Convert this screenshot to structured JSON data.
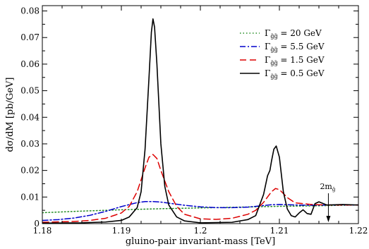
{
  "chart_data": {
    "type": "line",
    "xlabel": "gluino-pair invariant-mass [TeV]",
    "ylabel": "dσ/dM [pb/GeV]",
    "xlim": [
      1.18,
      1.22
    ],
    "ylim": [
      0,
      0.082
    ],
    "x_ticks": [
      "1.18",
      "1.19",
      "1.2",
      "1.21",
      "1.22"
    ],
    "y_ticks": [
      "0",
      "0.01",
      "0.02",
      "0.03",
      "0.04",
      "0.05",
      "0.06",
      "0.07",
      "0.08"
    ],
    "legend_position": "top-right",
    "annotation": {
      "text": "2m",
      "sub": "g̃",
      "x": 1.2162
    },
    "series": [
      {
        "name_main": "Γ",
        "name_sub": "g̃g̃",
        "name_rest": " = 20  GeV",
        "color": "#228B22",
        "dash": "1.5,3",
        "x": [
          1.18,
          1.185,
          1.19,
          1.195,
          1.2,
          1.205,
          1.21,
          1.215,
          1.22
        ],
        "y": [
          0.0041,
          0.0047,
          0.0052,
          0.0056,
          0.0059,
          0.0062,
          0.0065,
          0.0067,
          0.007
        ]
      },
      {
        "name_main": "Γ",
        "name_sub": "g̃g̃",
        "name_rest": " = 5.5 GeV",
        "color": "#0000CC",
        "dash": "8,3,2,3",
        "x": [
          1.18,
          1.182,
          1.184,
          1.186,
          1.188,
          1.19,
          1.192,
          1.193,
          1.194,
          1.195,
          1.196,
          1.198,
          1.2,
          1.202,
          1.204,
          1.206,
          1.208,
          1.209,
          1.21,
          1.212,
          1.214,
          1.216,
          1.218,
          1.22
        ],
        "y": [
          0.0012,
          0.0015,
          0.0021,
          0.0031,
          0.0046,
          0.0064,
          0.0079,
          0.0083,
          0.0083,
          0.0081,
          0.0077,
          0.0069,
          0.0063,
          0.006,
          0.006,
          0.0062,
          0.0068,
          0.0071,
          0.0072,
          0.007,
          0.0069,
          0.007,
          0.007,
          0.007
        ]
      },
      {
        "name_main": "Γ",
        "name_sub": "g̃g̃",
        "name_rest": " = 1.5 GeV",
        "color": "#DD0000",
        "dash": "9,5",
        "x": [
          1.18,
          1.184,
          1.186,
          1.188,
          1.19,
          1.191,
          1.192,
          1.193,
          1.1935,
          1.194,
          1.1945,
          1.195,
          1.196,
          1.197,
          1.198,
          1.2,
          1.202,
          1.204,
          1.206,
          1.207,
          1.208,
          1.209,
          1.2095,
          1.21,
          1.211,
          1.212,
          1.214,
          1.216,
          1.22
        ],
        "y": [
          0.0005,
          0.0008,
          0.0012,
          0.002,
          0.004,
          0.0065,
          0.012,
          0.021,
          0.025,
          0.026,
          0.0245,
          0.02,
          0.012,
          0.0065,
          0.0035,
          0.0018,
          0.0016,
          0.002,
          0.0035,
          0.005,
          0.008,
          0.012,
          0.0132,
          0.0128,
          0.0098,
          0.0078,
          0.0072,
          0.007,
          0.007
        ]
      },
      {
        "name_main": "Γ",
        "name_sub": "g̃g̃",
        "name_rest": " = 0.5 GeV",
        "color": "#000000",
        "dash": "",
        "x": [
          1.18,
          1.185,
          1.188,
          1.19,
          1.191,
          1.192,
          1.1925,
          1.193,
          1.1935,
          1.1938,
          1.194,
          1.1942,
          1.1945,
          1.195,
          1.1955,
          1.196,
          1.197,
          1.198,
          1.2,
          1.204,
          1.206,
          1.207,
          1.208,
          1.2085,
          1.2088,
          1.209,
          1.2093,
          1.2096,
          1.21,
          1.2105,
          1.211,
          1.2115,
          1.212,
          1.2125,
          1.213,
          1.2135,
          1.214,
          1.2145,
          1.215,
          1.216,
          1.218,
          1.22
        ],
        "y": [
          0.0002,
          0.0003,
          0.0006,
          0.0012,
          0.0025,
          0.006,
          0.012,
          0.028,
          0.055,
          0.072,
          0.077,
          0.074,
          0.06,
          0.03,
          0.014,
          0.007,
          0.0025,
          0.001,
          0.0003,
          0.0005,
          0.0015,
          0.003,
          0.011,
          0.018,
          0.02,
          0.0235,
          0.028,
          0.0292,
          0.025,
          0.012,
          0.0055,
          0.003,
          0.0025,
          0.004,
          0.0052,
          0.0038,
          0.0035,
          0.0075,
          0.0082,
          0.007,
          0.0072,
          0.007
        ]
      }
    ]
  }
}
